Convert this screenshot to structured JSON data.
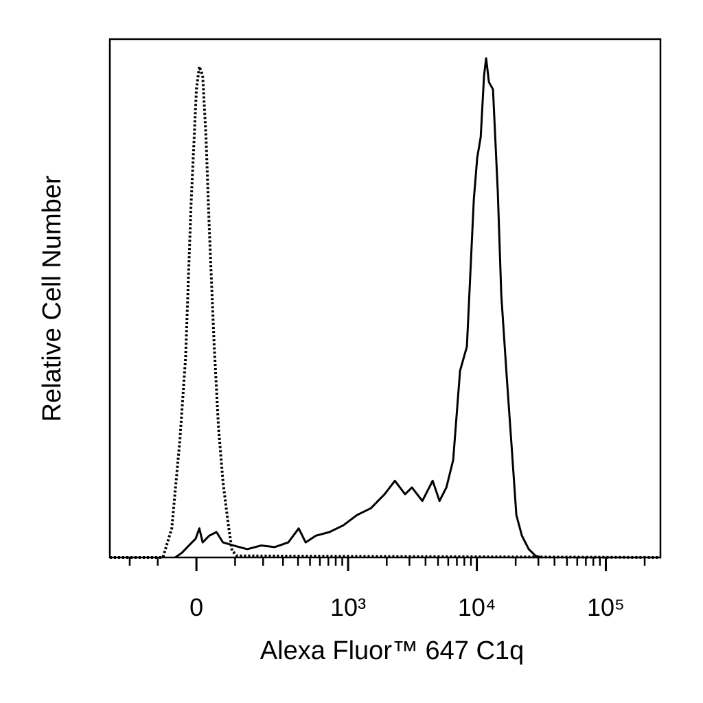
{
  "chart_data": {
    "type": "line",
    "xlabel": "Alexa Fluor™ 647 C1q",
    "ylabel": "Relative Cell Number",
    "xscale": "biexponential",
    "xlim": [
      -300,
      265000
    ],
    "ylim": [
      0,
      100
    ],
    "xticks": [
      0,
      {
        "value": 1000,
        "label": "10³"
      },
      {
        "value": 10000,
        "label": "10⁴"
      },
      {
        "value": 100000,
        "label": "10⁵"
      }
    ],
    "xminorticks": [
      -200,
      -100,
      100,
      200,
      300,
      400,
      500,
      600,
      700,
      800,
      900,
      2000,
      3000,
      4000,
      5000,
      6000,
      7000,
      8000,
      9000,
      20000,
      30000,
      40000,
      50000,
      60000,
      70000,
      80000,
      90000,
      200000
    ],
    "series": [
      {
        "color": "#000000",
        "dashed": true,
        "x": [
          -300,
          -85,
          -61,
          -40,
          -26,
          -13,
          -7,
          0,
          7,
          15,
          23,
          31,
          43,
          54,
          66,
          80,
          91,
          106,
          265000
        ],
        "values": [
          0,
          0,
          5.6,
          22.8,
          38.7,
          67.8,
          78.4,
          90.3,
          94.7,
          93,
          81,
          63.6,
          41.1,
          25.2,
          14.6,
          6.6,
          1.3,
          0.3,
          0
        ]
      },
      {
        "color": "#000000",
        "dashed": false,
        "x": [
          -52,
          -35,
          -18,
          -2,
          7,
          15,
          31,
          49,
          66,
          95,
          139,
          192,
          254,
          332,
          405,
          461,
          557,
          714,
          918,
          1176,
          1505,
          1924,
          2313,
          2774,
          3136,
          3779,
          4543,
          5132,
          5802,
          6553,
          7410,
          8375,
          9474,
          10063,
          10707,
          11377,
          11805,
          12408,
          13346,
          14539,
          15464,
          17058,
          18586,
          20247,
          22338,
          25246,
          28529,
          32240
        ],
        "values": [
          0,
          0.9,
          2.3,
          3.6,
          5.6,
          2.9,
          4.2,
          4.9,
          2.9,
          2.3,
          1.6,
          2.3,
          2.0,
          2.9,
          5.6,
          2.9,
          4.2,
          4.9,
          6.2,
          8.2,
          9.5,
          12.2,
          14.8,
          12.2,
          13.5,
          10.9,
          14.8,
          10.9,
          13.5,
          18.8,
          36.0,
          40.7,
          69.1,
          77.1,
          81.1,
          93.0,
          96.3,
          91.7,
          90.3,
          70.5,
          50.6,
          34.7,
          21.5,
          8.2,
          4.2,
          1.6,
          0.3,
          0
        ]
      }
    ]
  }
}
